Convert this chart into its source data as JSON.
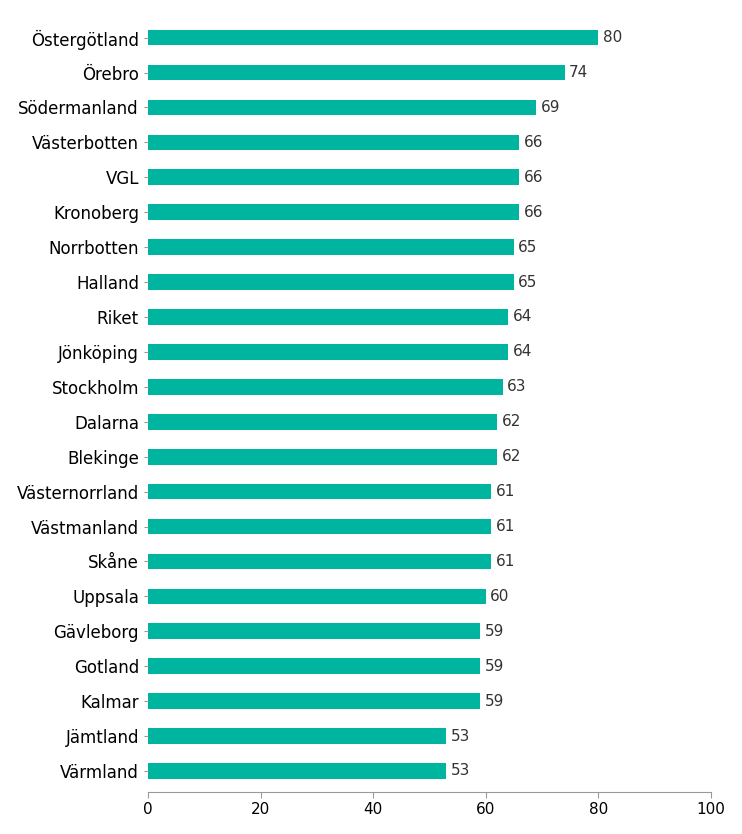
{
  "categories": [
    "Värmland",
    "Jämtland",
    "Kalmar",
    "Gotland",
    "Gävleborg",
    "Uppsala",
    "Skåne",
    "Västmanland",
    "Västernorrland",
    "Blekinge",
    "Dalarna",
    "Stockholm",
    "Jönköping",
    "Riket",
    "Halland",
    "Norrbotten",
    "Kronoberg",
    "VGL",
    "Västerbotten",
    "Södermanland",
    "Örebro",
    "Östergötland"
  ],
  "values": [
    53,
    53,
    59,
    59,
    59,
    60,
    61,
    61,
    61,
    62,
    62,
    63,
    64,
    64,
    65,
    65,
    66,
    66,
    66,
    69,
    74,
    80
  ],
  "bar_color": "#00b5a0",
  "xlim": [
    0,
    100
  ],
  "xticks": [
    0,
    20,
    40,
    60,
    80,
    100
  ],
  "bar_height": 0.45,
  "label_fontsize": 12,
  "tick_fontsize": 11,
  "value_fontsize": 11,
  "background_color": "#ffffff"
}
